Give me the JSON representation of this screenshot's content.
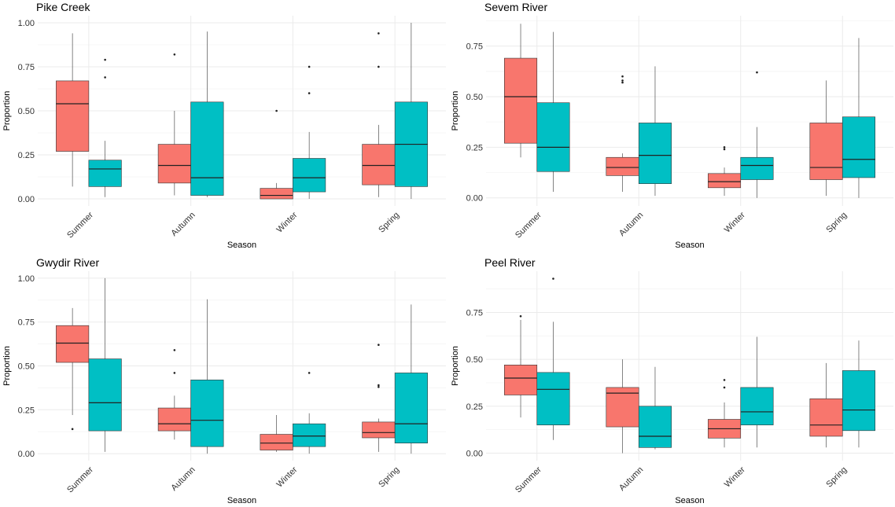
{
  "colors": {
    "group1": "#F8766D",
    "group2": "#00BFC4",
    "grid": "#EBEBEB",
    "stroke": "#333333"
  },
  "chart_data": [
    {
      "type": "boxplot",
      "title": "Pike Creek",
      "xlabel": "Season",
      "ylabel": "Proportion",
      "categories": [
        "Summer",
        "Autumn",
        "Winter",
        "Spring"
      ],
      "ylim": [
        -0.04,
        1.04
      ],
      "yticks": [
        0,
        0.25,
        0.5,
        0.75,
        1
      ],
      "ytick_labels": [
        "0.00",
        "0.25",
        "0.50",
        "0.75",
        "1.00"
      ],
      "series": [
        {
          "name": "group1",
          "boxes": [
            {
              "min": 0.07,
              "q1": 0.27,
              "median": 0.54,
              "q3": 0.67,
              "max": 0.94,
              "outliers": []
            },
            {
              "min": 0.02,
              "q1": 0.09,
              "median": 0.19,
              "q3": 0.31,
              "max": 0.5,
              "outliers": [
                0.82
              ]
            },
            {
              "min": 0.0,
              "q1": 0.0,
              "median": 0.02,
              "q3": 0.06,
              "max": 0.09,
              "outliers": [
                0.5
              ]
            },
            {
              "min": 0.01,
              "q1": 0.08,
              "median": 0.19,
              "q3": 0.31,
              "max": 0.42,
              "outliers": [
                0.75,
                0.94
              ]
            }
          ]
        },
        {
          "name": "group2",
          "boxes": [
            {
              "min": 0.01,
              "q1": 0.07,
              "median": 0.17,
              "q3": 0.22,
              "max": 0.33,
              "outliers": [
                0.69,
                0.79
              ]
            },
            {
              "min": 0.01,
              "q1": 0.02,
              "median": 0.12,
              "q3": 0.55,
              "max": 0.95,
              "outliers": []
            },
            {
              "min": 0.0,
              "q1": 0.04,
              "median": 0.12,
              "q3": 0.23,
              "max": 0.38,
              "outliers": [
                0.6,
                0.75
              ]
            },
            {
              "min": 0.0,
              "q1": 0.07,
              "median": 0.31,
              "q3": 0.55,
              "max": 1.0,
              "outliers": []
            }
          ]
        }
      ]
    },
    {
      "type": "boxplot",
      "title": "Sevem River",
      "xlabel": "Season",
      "ylabel": "Proportion",
      "categories": [
        "Summer",
        "Autumn",
        "Winter",
        "Spring"
      ],
      "ylim": [
        -0.04,
        0.9
      ],
      "yticks": [
        0,
        0.25,
        0.5,
        0.75
      ],
      "ytick_labels": [
        "0.00",
        "0.25",
        "0.50",
        "0.75"
      ],
      "series": [
        {
          "name": "group1",
          "boxes": [
            {
              "min": 0.2,
              "q1": 0.27,
              "median": 0.5,
              "q3": 0.69,
              "max": 0.86,
              "outliers": []
            },
            {
              "min": 0.03,
              "q1": 0.11,
              "median": 0.15,
              "q3": 0.2,
              "max": 0.22,
              "outliers": [
                0.57,
                0.58,
                0.6
              ]
            },
            {
              "min": 0.01,
              "q1": 0.05,
              "median": 0.08,
              "q3": 0.12,
              "max": 0.15,
              "outliers": [
                0.24,
                0.25
              ]
            },
            {
              "min": 0.01,
              "q1": 0.09,
              "median": 0.15,
              "q3": 0.37,
              "max": 0.58,
              "outliers": []
            }
          ]
        },
        {
          "name": "group2",
          "boxes": [
            {
              "min": 0.03,
              "q1": 0.13,
              "median": 0.25,
              "q3": 0.47,
              "max": 0.82,
              "outliers": []
            },
            {
              "min": 0.01,
              "q1": 0.07,
              "median": 0.21,
              "q3": 0.37,
              "max": 0.65,
              "outliers": []
            },
            {
              "min": 0.0,
              "q1": 0.09,
              "median": 0.16,
              "q3": 0.2,
              "max": 0.35,
              "outliers": [
                0.62
              ]
            },
            {
              "min": 0.0,
              "q1": 0.1,
              "median": 0.19,
              "q3": 0.4,
              "max": 0.79,
              "outliers": []
            }
          ]
        }
      ]
    },
    {
      "type": "boxplot",
      "title": "Gwydir River",
      "xlabel": "Season",
      "ylabel": "Proportion",
      "categories": [
        "Summer",
        "Autumn",
        "Winter",
        "Spring"
      ],
      "ylim": [
        -0.04,
        1.04
      ],
      "yticks": [
        0,
        0.25,
        0.5,
        0.75,
        1
      ],
      "ytick_labels": [
        "0.00",
        "0.25",
        "0.50",
        "0.75",
        "1.00"
      ],
      "series": [
        {
          "name": "group1",
          "boxes": [
            {
              "min": 0.22,
              "q1": 0.52,
              "median": 0.63,
              "q3": 0.73,
              "max": 0.83,
              "outliers": [
                0.14
              ]
            },
            {
              "min": 0.08,
              "q1": 0.13,
              "median": 0.17,
              "q3": 0.26,
              "max": 0.33,
              "outliers": [
                0.46,
                0.59
              ]
            },
            {
              "min": 0.01,
              "q1": 0.02,
              "median": 0.06,
              "q3": 0.11,
              "max": 0.22,
              "outliers": []
            },
            {
              "min": 0.01,
              "q1": 0.09,
              "median": 0.12,
              "q3": 0.18,
              "max": 0.2,
              "outliers": [
                0.38,
                0.39,
                0.62
              ]
            }
          ]
        },
        {
          "name": "group2",
          "boxes": [
            {
              "min": 0.01,
              "q1": 0.13,
              "median": 0.29,
              "q3": 0.54,
              "max": 1.0,
              "outliers": []
            },
            {
              "min": 0.0,
              "q1": 0.04,
              "median": 0.19,
              "q3": 0.42,
              "max": 0.88,
              "outliers": []
            },
            {
              "min": 0.0,
              "q1": 0.04,
              "median": 0.1,
              "q3": 0.17,
              "max": 0.23,
              "outliers": [
                0.46
              ]
            },
            {
              "min": 0.0,
              "q1": 0.06,
              "median": 0.17,
              "q3": 0.46,
              "max": 0.85,
              "outliers": []
            }
          ]
        }
      ]
    },
    {
      "type": "boxplot",
      "title": "Peel River",
      "xlabel": "Season",
      "ylabel": "Proportion",
      "categories": [
        "Summer",
        "Autumn",
        "Winter",
        "Spring"
      ],
      "ylim": [
        -0.04,
        0.97
      ],
      "yticks": [
        0,
        0.25,
        0.5,
        0.75
      ],
      "ytick_labels": [
        "0.00",
        "0.25",
        "0.50",
        "0.75"
      ],
      "series": [
        {
          "name": "group1",
          "boxes": [
            {
              "min": 0.19,
              "q1": 0.31,
              "median": 0.4,
              "q3": 0.47,
              "max": 0.71,
              "outliers": [
                0.73
              ]
            },
            {
              "min": 0.0,
              "q1": 0.14,
              "median": 0.32,
              "q3": 0.35,
              "max": 0.5,
              "outliers": []
            },
            {
              "min": 0.03,
              "q1": 0.08,
              "median": 0.13,
              "q3": 0.18,
              "max": 0.27,
              "outliers": [
                0.35,
                0.39
              ]
            },
            {
              "min": 0.03,
              "q1": 0.09,
              "median": 0.15,
              "q3": 0.29,
              "max": 0.48,
              "outliers": []
            }
          ]
        },
        {
          "name": "group2",
          "boxes": [
            {
              "min": 0.07,
              "q1": 0.15,
              "median": 0.34,
              "q3": 0.43,
              "max": 0.7,
              "outliers": [
                0.93
              ]
            },
            {
              "min": 0.02,
              "q1": 0.03,
              "median": 0.09,
              "q3": 0.25,
              "max": 0.46,
              "outliers": []
            },
            {
              "min": 0.03,
              "q1": 0.15,
              "median": 0.22,
              "q3": 0.35,
              "max": 0.62,
              "outliers": []
            },
            {
              "min": 0.03,
              "q1": 0.12,
              "median": 0.23,
              "q3": 0.44,
              "max": 0.6,
              "outliers": []
            }
          ]
        }
      ]
    }
  ]
}
